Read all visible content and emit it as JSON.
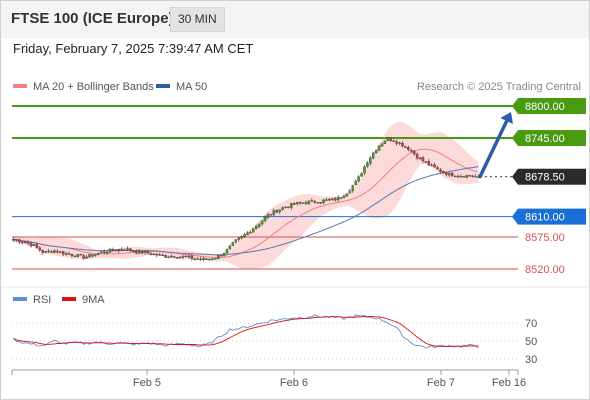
{
  "header": {
    "title": "FTSE 100 (ICE Europe)",
    "timeframe": "30 MIN"
  },
  "datetime": "Friday, February 7, 2025 7:39:47 AM CET",
  "legend": {
    "bollinger_label": "MA 20 + Bollinger Bands",
    "ma50_label": "MA 50",
    "source": "Research © 2025 Trading Central",
    "bollinger_color": "#f08080",
    "ma50_color": "#2e5f9e"
  },
  "colors": {
    "bullish": "#4a9a2a",
    "bearish": "#d23a3a",
    "green_level": "#4a9a10",
    "blue_level": "#1a6fd6",
    "red_level": "#d85050",
    "arrow": "#2a5ea8"
  },
  "chart_data": [
    {
      "type": "candlestick",
      "instrument": "FTSE 100 (ICE Europe)",
      "timeframe": "30 MIN",
      "x_ticks": [
        "Feb 5",
        "Feb 6",
        "Feb 7",
        "Feb 16"
      ],
      "ylim": [
        8505,
        8815
      ],
      "last_price": 8678.5,
      "levels": [
        {
          "value": 8800.0,
          "label": "8800.00",
          "kind": "resistance"
        },
        {
          "value": 8745.0,
          "label": "8745.00",
          "kind": "resistance"
        },
        {
          "value": 8678.5,
          "label": "8678.50",
          "kind": "last"
        },
        {
          "value": 8610.0,
          "label": "8610.00",
          "kind": "pivot"
        },
        {
          "value": 8575.0,
          "label": "8575.00",
          "kind": "support"
        },
        {
          "value": 8520.0,
          "label": "8520.00",
          "kind": "support"
        }
      ],
      "forecast_arrow": {
        "from": 8678.5,
        "to": 8800
      },
      "series": [
        {
          "name": "MA 20 + Bollinger Bands"
        },
        {
          "name": "MA 50"
        }
      ],
      "price_anchors": [
        8571,
        8567,
        8560,
        8548,
        8552,
        8547,
        8544,
        8540,
        8545,
        8550,
        8553,
        8555,
        8550,
        8548,
        8545,
        8542,
        8543,
        8540,
        8538,
        8536,
        8540,
        8550,
        8568,
        8580,
        8594,
        8610,
        8620,
        8628,
        8632,
        8635,
        8636,
        8638,
        8640,
        8652,
        8672,
        8705,
        8730,
        8745,
        8738,
        8728,
        8712,
        8700,
        8690,
        8683,
        8681,
        8680,
        8678.5
      ]
    },
    {
      "type": "line",
      "title": "RSI",
      "series": [
        {
          "name": "RSI"
        },
        {
          "name": "9MA"
        }
      ],
      "ylim": [
        20,
        80
      ],
      "y_ticks": [
        "70",
        "50",
        "30"
      ],
      "grid": true,
      "rsi_anchors": [
        52,
        48,
        46,
        45,
        50,
        47,
        48,
        47,
        49,
        47,
        48,
        47,
        46,
        48,
        46,
        45,
        47,
        46,
        44,
        47,
        55,
        63,
        64,
        67,
        70,
        73,
        74,
        76,
        76,
        78,
        77,
        76,
        75,
        78,
        77,
        76,
        72,
        65,
        52,
        45,
        43,
        44,
        45,
        44,
        45,
        44
      ]
    }
  ]
}
